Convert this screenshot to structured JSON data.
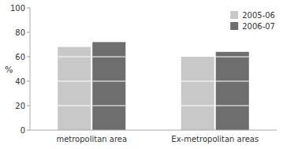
{
  "chart_data": {
    "type": "bar",
    "categories": [
      "metropolitan area",
      "Ex-metropolitan areas"
    ],
    "series": [
      {
        "name": "2005-06",
        "color": "#c8c8c8",
        "values": [
          68,
          60
        ]
      },
      {
        "name": "2006-07",
        "color": "#6e6e6e",
        "values": [
          72,
          64
        ]
      }
    ],
    "ylabel": "%",
    "ylim": [
      0,
      100
    ],
    "yticks": [
      0,
      20,
      40,
      60,
      80,
      100
    ],
    "grid": false,
    "legend": "upper right"
  }
}
